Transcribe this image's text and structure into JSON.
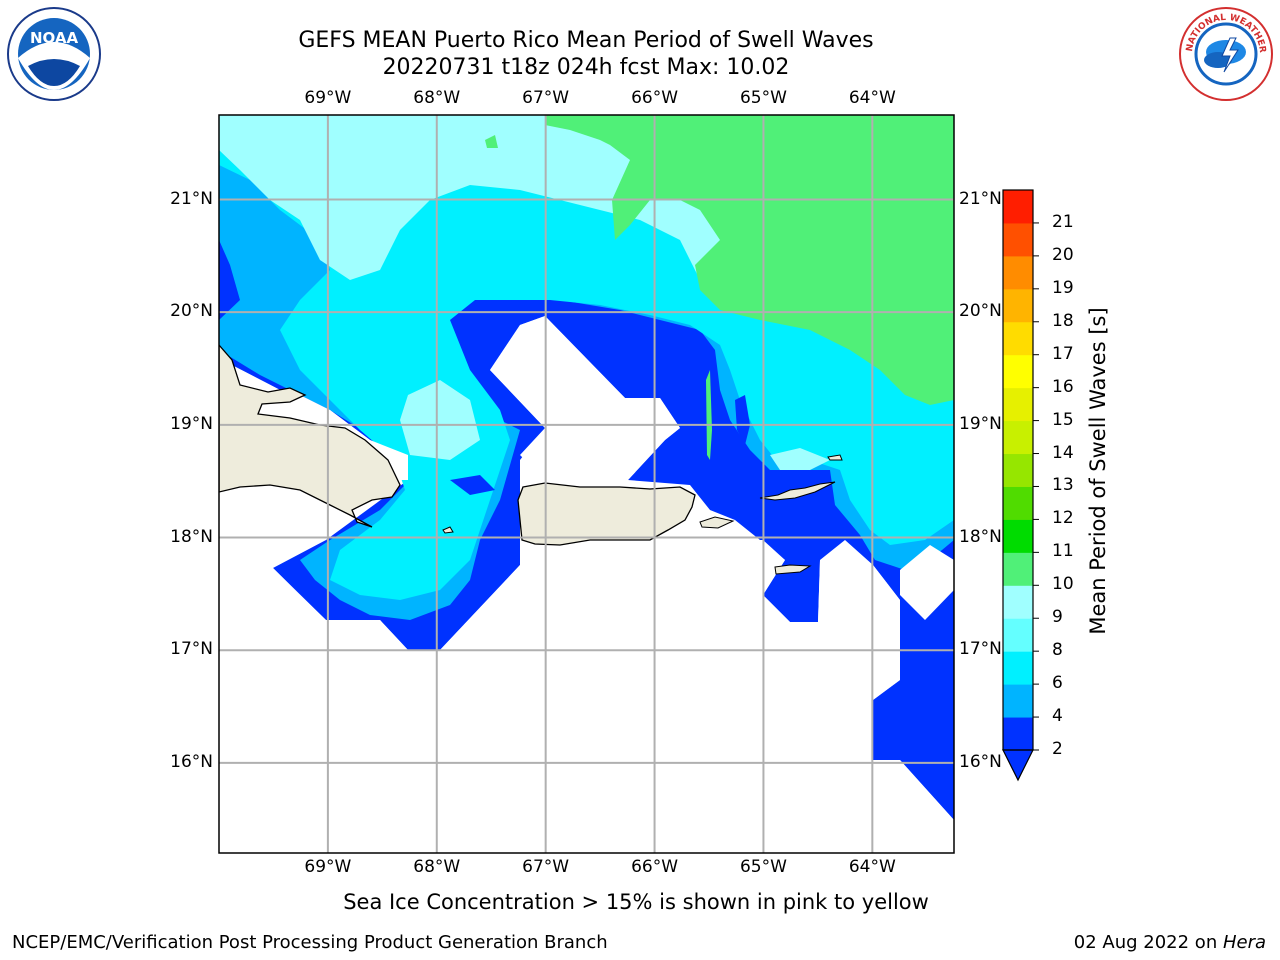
{
  "title": {
    "line1": "GEFS MEAN Puerto Rico Mean Period of Swell Waves",
    "line2": "20220731 t18z 024h fcst   Max: 10.02"
  },
  "logos": {
    "left": {
      "icon": "noaa-logo",
      "text": "NOAA"
    },
    "right": {
      "icon": "nws-logo",
      "text": "NATIONAL WEATHER SERVICE"
    }
  },
  "map": {
    "projection": "lat-lon",
    "lon_range": [
      -70.0,
      -63.25
    ],
    "lat_range": [
      15.2,
      21.75
    ],
    "lon_labels": [
      "69°W",
      "68°W",
      "67°W",
      "66°W",
      "65°W",
      "64°W"
    ],
    "lat_labels": [
      "21°N",
      "20°N",
      "19°N",
      "18°N",
      "17°N",
      "16°N"
    ],
    "land_color": "#eeecdc",
    "grid_color": "#b0b0b0"
  },
  "colorbar": {
    "label": "Mean Period of Swell Waves [s]",
    "ticks": [
      "21",
      "20",
      "19",
      "18",
      "17",
      "16",
      "15",
      "14",
      "13",
      "12",
      "11",
      "10",
      "9",
      "8",
      "6",
      "4",
      "2"
    ],
    "levels": [
      2,
      4,
      6,
      8,
      9,
      10,
      11,
      12,
      13,
      14,
      15,
      16,
      17,
      18,
      19,
      20,
      21
    ],
    "colors": [
      "#0032ff",
      "#00b4ff",
      "#00f0ff",
      "#64ffff",
      "#a0ffff",
      "#50f078",
      "#00dc00",
      "#50dc00",
      "#96e600",
      "#c8f000",
      "#e6f000",
      "#ffff00",
      "#ffdc00",
      "#ffb400",
      "#ff8c00",
      "#ff5000",
      "#ff1e00"
    ],
    "extend": "min"
  },
  "footer": {
    "note": "Sea Ice Concentration > 15% is shown in pink to yellow",
    "left": "NCEP/EMC/Verification Post Processing Product Generation Branch",
    "right_prefix": "02 Aug 2022 on ",
    "right_machine": "Hera"
  }
}
